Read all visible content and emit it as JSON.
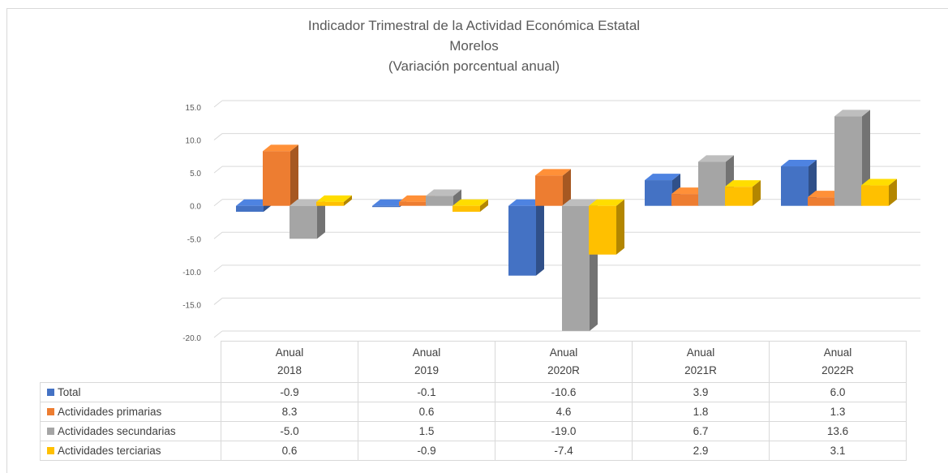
{
  "title_lines": [
    "Indicador Trimestral de la Actividad Económica Estatal",
    "Morelos",
    "(Variación porcentual anual)"
  ],
  "chart_data": {
    "type": "bar",
    "title": "Indicador Trimestral de la Actividad Económica Estatal Morelos (Variación porcentual anual)",
    "categories": [
      {
        "line1": "Anual",
        "line2": "2018"
      },
      {
        "line1": "Anual",
        "line2": "2019"
      },
      {
        "line1": "Anual",
        "line2": "2020R"
      },
      {
        "line1": "Anual",
        "line2": "2021R"
      },
      {
        "line1": "Anual",
        "line2": "2022R"
      }
    ],
    "series": [
      {
        "name": "Total",
        "color": "#4472c4",
        "values": [
          -0.9,
          -0.1,
          -10.6,
          3.9,
          6.0
        ],
        "labels": [
          "-0.9",
          "-0.1",
          "-10.6",
          "3.9",
          "6.0"
        ]
      },
      {
        "name": "Actividades primarias",
        "color": "#ed7d31",
        "values": [
          8.3,
          0.6,
          4.6,
          1.8,
          1.3
        ],
        "labels": [
          "8.3",
          "0.6",
          "4.6",
          "1.8",
          "1.3"
        ]
      },
      {
        "name": "Actividades secundarias",
        "color": "#a5a5a5",
        "values": [
          -5.0,
          1.5,
          -19.0,
          6.7,
          13.6
        ],
        "labels": [
          "-5.0",
          "1.5",
          "-19.0",
          "6.7",
          "13.6"
        ]
      },
      {
        "name": "Actividades terciarias",
        "color": "#ffc000",
        "values": [
          0.6,
          -0.9,
          -7.4,
          2.9,
          3.1
        ],
        "labels": [
          "0.6",
          "-0.9",
          "-7.4",
          "2.9",
          "3.1"
        ]
      }
    ],
    "ylim": [
      -20,
      15
    ],
    "yticks": [
      "15.0",
      "10.0",
      "5.0",
      "0.0",
      "-5.0",
      "-10.0",
      "-15.0",
      "-20.0"
    ],
    "grid": true,
    "legend": "data-table"
  }
}
